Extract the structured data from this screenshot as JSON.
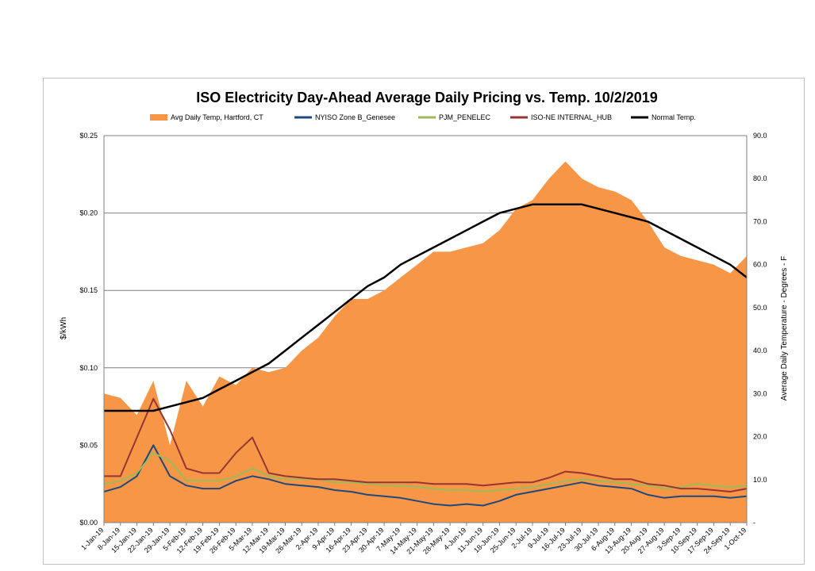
{
  "chart_data": {
    "type": "area+line",
    "title": "ISO Electricity Day-Ahead Average Daily Pricing vs. Temp. 10/2/2019",
    "ylabel_left": "$/kWh",
    "ylabel_right": "Average Daily Temperature - Degrees - F",
    "ylim_left": [
      0,
      0.25
    ],
    "ylim_right": [
      0,
      90
    ],
    "left_ticks": [
      "$0.00",
      "$0.05",
      "$0.10",
      "$0.15",
      "$0.20",
      "$0.25"
    ],
    "right_ticks": [
      "-",
      "10.0",
      "20.0",
      "30.0",
      "40.0",
      "50.0",
      "60.0",
      "70.0",
      "80.0",
      "90.0"
    ],
    "x_tick_labels": [
      "1-Jan-19",
      "8-Jan-19",
      "15-Jan-19",
      "22-Jan-19",
      "29-Jan-19",
      "5-Feb-19",
      "12-Feb-19",
      "19-Feb-19",
      "26-Feb-19",
      "5-Mar-19",
      "12-Mar-19",
      "19-Mar-19",
      "26-Mar-19",
      "2-Apr-19",
      "9-Apr-19",
      "16-Apr-19",
      "23-Apr-19",
      "30-Apr-19",
      "7-May-19",
      "14-May-19",
      "21-May-19",
      "28-May-19",
      "4-Jun-19",
      "11-Jun-19",
      "18-Jun-19",
      "25-Jun-19",
      "2-Jul-19",
      "9-Jul-19",
      "16-Jul-19",
      "23-Jul-19",
      "30-Jul-19",
      "6-Aug-19",
      "13-Aug-19",
      "20-Aug-19",
      "27-Aug-19",
      "3-Sep-19",
      "10-Sep-19",
      "17-Sep-19",
      "24-Sep-19",
      "1-Oct-19"
    ],
    "legend": "top",
    "grid": "horizontal",
    "series": [
      {
        "name": "Avg Daily Temp, Hartford, CT",
        "kind": "area",
        "axis": "right",
        "color": "#F79646",
        "week_values": [
          30,
          29,
          25,
          33,
          18,
          33,
          27,
          34,
          32,
          36,
          35,
          36,
          40,
          43,
          48,
          52,
          52,
          54,
          57,
          60,
          63,
          63,
          64,
          65,
          68,
          73,
          75,
          80,
          84,
          80,
          78,
          77,
          75,
          70,
          64,
          62,
          61,
          60,
          58,
          62
        ]
      },
      {
        "name": "NYISO Zone B_Genesee",
        "kind": "line",
        "axis": "left",
        "color": "#1F497D",
        "week_values": [
          0.02,
          0.023,
          0.03,
          0.05,
          0.03,
          0.024,
          0.022,
          0.022,
          0.027,
          0.03,
          0.028,
          0.025,
          0.024,
          0.023,
          0.021,
          0.02,
          0.018,
          0.017,
          0.016,
          0.014,
          0.012,
          0.011,
          0.012,
          0.011,
          0.014,
          0.018,
          0.02,
          0.022,
          0.024,
          0.026,
          0.024,
          0.023,
          0.022,
          0.018,
          0.016,
          0.017,
          0.017,
          0.017,
          0.016,
          0.017
        ]
      },
      {
        "name": "PJM_PENELEC",
        "kind": "line",
        "axis": "left",
        "color": "#9BBB59",
        "week_values": [
          0.025,
          0.027,
          0.032,
          0.045,
          0.04,
          0.027,
          0.027,
          0.027,
          0.03,
          0.035,
          0.03,
          0.028,
          0.028,
          0.028,
          0.026,
          0.026,
          0.025,
          0.024,
          0.024,
          0.023,
          0.022,
          0.021,
          0.021,
          0.02,
          0.021,
          0.022,
          0.023,
          0.025,
          0.027,
          0.028,
          0.027,
          0.026,
          0.025,
          0.024,
          0.022,
          0.023,
          0.025,
          0.024,
          0.023,
          0.024
        ]
      },
      {
        "name": "ISO-NE INTERNAL_HUB",
        "kind": "line",
        "axis": "left",
        "color": "#943634",
        "week_values": [
          0.03,
          0.03,
          0.055,
          0.08,
          0.06,
          0.035,
          0.032,
          0.032,
          0.045,
          0.055,
          0.032,
          0.03,
          0.029,
          0.028,
          0.028,
          0.027,
          0.026,
          0.026,
          0.026,
          0.026,
          0.025,
          0.025,
          0.025,
          0.024,
          0.025,
          0.026,
          0.026,
          0.029,
          0.033,
          0.032,
          0.03,
          0.028,
          0.028,
          0.025,
          0.024,
          0.022,
          0.022,
          0.021,
          0.02,
          0.022
        ]
      },
      {
        "name": "Normal Temp.",
        "kind": "line",
        "axis": "right",
        "color": "#000000",
        "week_values": [
          26,
          26,
          26,
          26,
          27,
          28,
          29,
          31,
          33,
          35,
          37,
          40,
          43,
          46,
          49,
          52,
          55,
          57,
          60,
          62,
          64,
          66,
          68,
          70,
          72,
          73,
          74,
          74,
          74,
          74,
          73,
          72,
          71,
          70,
          68,
          66,
          64,
          62,
          60,
          57
        ]
      }
    ]
  }
}
